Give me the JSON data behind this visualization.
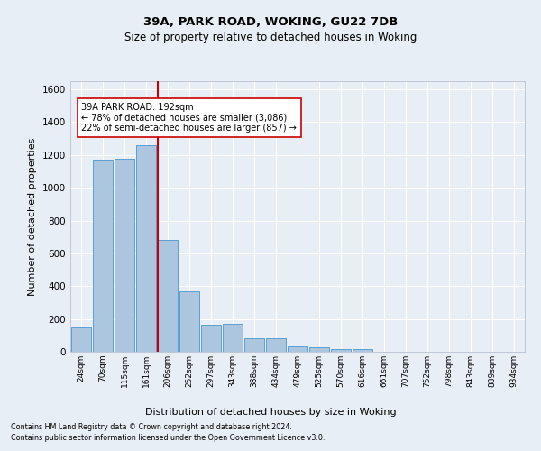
{
  "title1": "39A, PARK ROAD, WOKING, GU22 7DB",
  "title2": "Size of property relative to detached houses in Woking",
  "xlabel": "Distribution of detached houses by size in Woking",
  "ylabel": "Number of detached properties",
  "categories": [
    "24sqm",
    "70sqm",
    "115sqm",
    "161sqm",
    "206sqm",
    "252sqm",
    "297sqm",
    "343sqm",
    "388sqm",
    "434sqm",
    "479sqm",
    "525sqm",
    "570sqm",
    "616sqm",
    "661sqm",
    "707sqm",
    "752sqm",
    "798sqm",
    "843sqm",
    "889sqm",
    "934sqm"
  ],
  "values": [
    148,
    1170,
    1175,
    1260,
    680,
    370,
    165,
    170,
    80,
    80,
    35,
    30,
    18,
    18,
    0,
    0,
    0,
    0,
    0,
    0,
    0
  ],
  "bar_color": "#adc6e0",
  "bar_edge_color": "#5a9fd4",
  "annotation_line1": "39A PARK ROAD: 192sqm",
  "annotation_line2": "← 78% of detached houses are smaller (3,086)",
  "annotation_line3": "22% of semi-detached houses are larger (857) →",
  "annotation_box_color": "#cc0000",
  "ref_line_x": 3.55,
  "ylim": [
    0,
    1650
  ],
  "yticks": [
    0,
    200,
    400,
    600,
    800,
    1000,
    1200,
    1400,
    1600
  ],
  "footer1": "Contains HM Land Registry data © Crown copyright and database right 2024.",
  "footer2": "Contains public sector information licensed under the Open Government Licence v3.0.",
  "bg_color": "#e8eef5",
  "grid_color": "#ffffff"
}
